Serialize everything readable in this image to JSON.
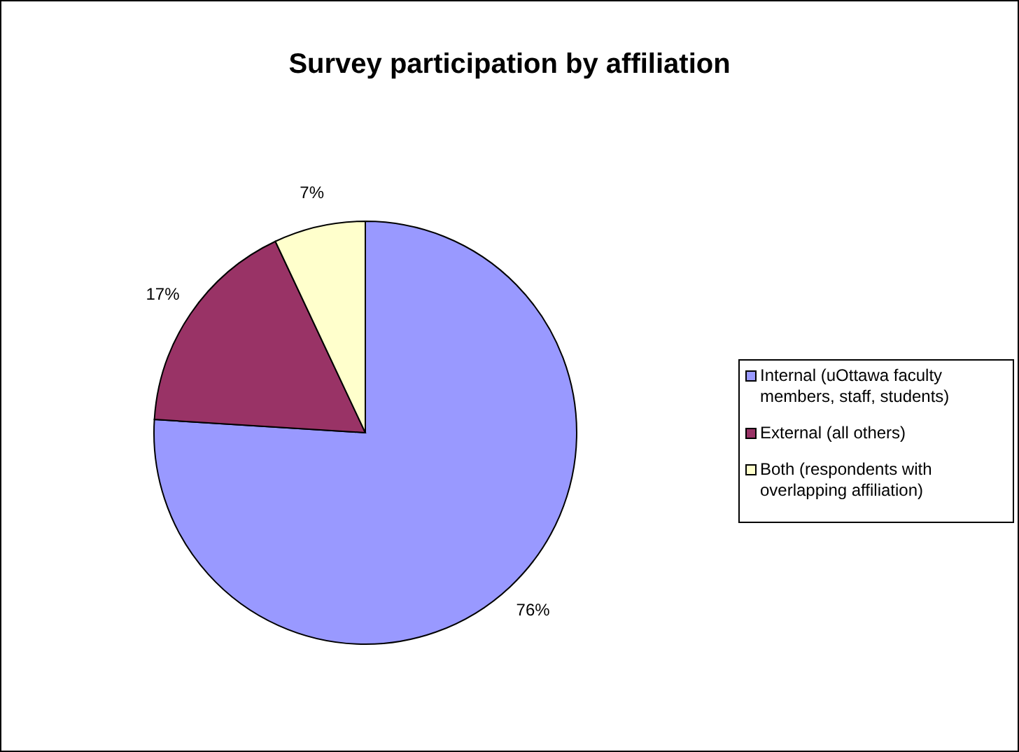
{
  "chart_data": {
    "type": "pie",
    "title": "Survey participation by affiliation",
    "categories": [
      "Internal (uOttawa faculty members, staff, students)",
      "External (all others)",
      "Both (respondents with overlapping affiliation)"
    ],
    "values": [
      76,
      17,
      7
    ],
    "colors": [
      "#9999ff",
      "#993366",
      "#ffffcc"
    ],
    "value_labels": [
      "76%",
      "17%",
      "7%"
    ],
    "legend": "right"
  }
}
